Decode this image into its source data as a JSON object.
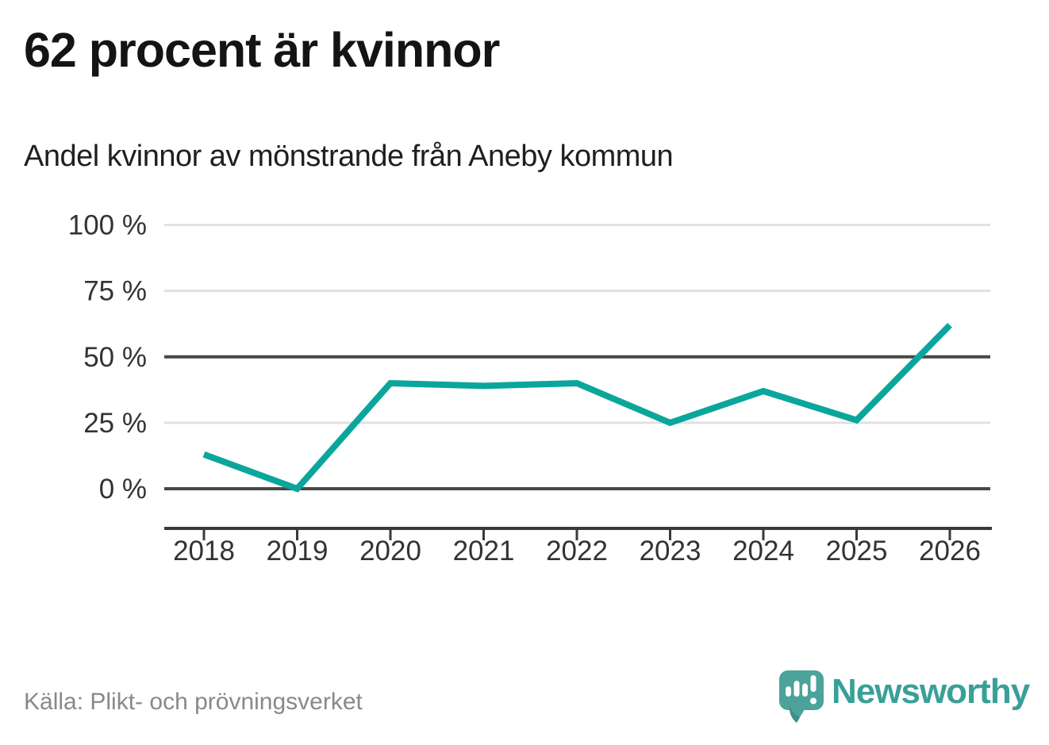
{
  "header": {
    "title": "62 procent är kvinnor"
  },
  "footer": {
    "source": "Källa: Plikt- och prövningsverket",
    "brand": "Newsworthy",
    "brand_icon": "newsworthy-speech-bubble-bar-chart-icon"
  },
  "colors": {
    "title": "#141414",
    "line": "#0aa69c",
    "grid_light": "#e1e1e1",
    "grid_dark": "#474747",
    "axis": "#3a3a3a",
    "tick_label": "#333333",
    "source_text": "#898989",
    "logo_bubble": "#4ba39b",
    "logo_text": "#38a097"
  },
  "chart_data": {
    "type": "line",
    "title": "Andel kvinnor av mönstrande från Aneby kommun",
    "categories": [
      "2018",
      "2019",
      "2020",
      "2021",
      "2022",
      "2023",
      "2024",
      "2025",
      "2026"
    ],
    "series": [
      {
        "name": "Andel kvinnor av mönstrande",
        "values": [
          13,
          0,
          40,
          39,
          40,
          25,
          37,
          26,
          62
        ]
      }
    ],
    "ylim": [
      0,
      100
    ],
    "yticks": [
      {
        "value": 0,
        "label": "0 %"
      },
      {
        "value": 25,
        "label": "25 %"
      },
      {
        "value": 50,
        "label": "50 %"
      },
      {
        "value": 75,
        "label": "75 %"
      },
      {
        "value": 100,
        "label": "100 %"
      }
    ],
    "emphasized_gridlines": [
      0,
      50
    ],
    "grid": true,
    "legend": false,
    "xlabel": "",
    "ylabel": ""
  }
}
